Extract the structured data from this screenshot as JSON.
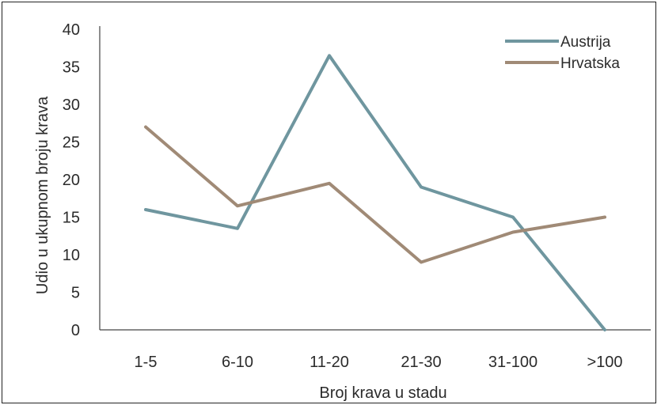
{
  "chart_data": {
    "type": "line",
    "categories": [
      "1-5",
      "6-10",
      "11-20",
      "21-30",
      "31-100",
      ">100"
    ],
    "series": [
      {
        "name": "Austrija",
        "values": [
          16,
          13.5,
          36.5,
          19,
          15,
          0
        ],
        "color": "#6f969f"
      },
      {
        "name": "Hrvatska",
        "values": [
          27,
          16.5,
          19.5,
          9,
          13,
          15
        ],
        "color": "#a08a76"
      }
    ],
    "xlabel": "Broj krava u stadu",
    "ylabel": "Udio u ukupnom broju krava",
    "ylim": [
      0,
      40
    ],
    "yticks": [
      0,
      5,
      10,
      15,
      20,
      25,
      30,
      35,
      40
    ],
    "grid": false,
    "legend": "top-right"
  }
}
